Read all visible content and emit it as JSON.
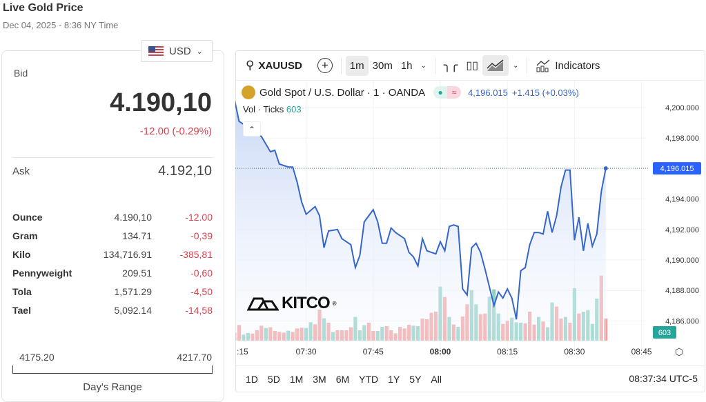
{
  "header": {
    "title": "Live Gold Price",
    "subtitle": "Dec 04, 2025 - 8:36 NY Time"
  },
  "currency": {
    "selected": "USD",
    "flag_icon": "us-flag-icon"
  },
  "quote": {
    "bid_label": "Bid",
    "bid": "4.190,10",
    "change": "-12.00 (-0.29%)",
    "ask_label": "Ask",
    "ask": "4.192,10"
  },
  "units": [
    {
      "name": "Ounce",
      "value": "4.190,10",
      "change": "-12.00"
    },
    {
      "name": "Gram",
      "value": "134.71",
      "change": "-0,39"
    },
    {
      "name": "Kilo",
      "value": "134,716.91",
      "change": "-385,81"
    },
    {
      "name": "Pennyweight",
      "value": "209.51",
      "change": "-0,60"
    },
    {
      "name": "Tola",
      "value": "1,571.29",
      "change": "-4,50"
    },
    {
      "name": "Tael",
      "value": "5,092.14",
      "change": "-14,58"
    }
  ],
  "day_range": {
    "low": "4175.20",
    "high": "4217.70",
    "label": "Day's Range",
    "current_fraction": 0.35
  },
  "toolbar": {
    "symbol": "XAUUSD",
    "intervals": [
      "1m",
      "30m",
      "1h"
    ],
    "selected_interval": "1m",
    "indicators": "Indicators"
  },
  "legend": {
    "title": "Gold Spot / U.S. Dollar · 1 · OANDA",
    "price": "4,196.015",
    "change": "+1.415 (+0.03%)",
    "vol_label": "Vol · Ticks",
    "vol_value": "603"
  },
  "logo": "KITCO",
  "ranges": [
    "1D",
    "5D",
    "1M",
    "3M",
    "6M",
    "YTD",
    "1Y",
    "5Y",
    "All"
  ],
  "clock": "08:37:34 UTC-5",
  "colors": {
    "line": "#3565c9",
    "up": "#26a69a",
    "down": "#ef5350",
    "price_tag": "#2962ff",
    "change": "#d9434f"
  },
  "chart_data": {
    "type": "area",
    "y_ticks": [
      "4,200.000",
      "4,198.000",
      "4,196.015",
      "4,194.000",
      "4,192.000",
      "4,190.000",
      "4,188.000",
      "4,186.000"
    ],
    "y_tick_values": [
      4200,
      4198,
      4194,
      4192,
      4190,
      4188,
      4186
    ],
    "x_ticks": [
      ":15",
      "07:30",
      "07:45",
      "08:00",
      "08:15",
      "08:30",
      "08:45"
    ],
    "last_price_label": "4,196.015",
    "last_volume_label": "603",
    "grid": true,
    "price": [
      [
        "07:14",
        4200.5
      ],
      [
        "07:15",
        4199.1
      ],
      [
        "07:16",
        4198.9
      ],
      [
        "07:17",
        4198.7
      ],
      [
        "07:18",
        4198.5
      ],
      [
        "07:19",
        4198.3
      ],
      [
        "07:20",
        4198.1
      ],
      [
        "07:21",
        4197.6
      ],
      [
        "07:22",
        4197.1
      ],
      [
        "07:23",
        4197.2
      ],
      [
        "07:24",
        4196.3
      ],
      [
        "07:25",
        4196.2
      ],
      [
        "07:26",
        4196.1
      ],
      [
        "07:27",
        4196.1
      ],
      [
        "07:28",
        4195.1
      ],
      [
        "07:29",
        4193.8
      ],
      [
        "07:30",
        4193.0
      ],
      [
        "07:32",
        4193.5
      ],
      [
        "07:33",
        4192.9
      ],
      [
        "07:34",
        4190.8
      ],
      [
        "07:35",
        4191.9
      ],
      [
        "07:37",
        4192.0
      ],
      [
        "07:38",
        4191.4
      ],
      [
        "07:40",
        4191.0
      ],
      [
        "07:41",
        4189.5
      ],
      [
        "07:42",
        4190.3
      ],
      [
        "07:43",
        4192.5
      ],
      [
        "07:45",
        4193.3
      ],
      [
        "07:46",
        4192.5
      ],
      [
        "07:47",
        4191.1
      ],
      [
        "07:48",
        4191.1
      ],
      [
        "07:49",
        4192.1
      ],
      [
        "07:50",
        4191.8
      ],
      [
        "07:52",
        4191.4
      ],
      [
        "07:53",
        4190.5
      ],
      [
        "07:54",
        4190.2
      ],
      [
        "07:55",
        4189.6
      ],
      [
        "07:56",
        4191.4
      ],
      [
        "07:57",
        4190.6
      ],
      [
        "07:59",
        4190.4
      ],
      [
        "08:00",
        4191.2
      ],
      [
        "08:01",
        4190.6
      ],
      [
        "08:02",
        4192.2
      ],
      [
        "08:03",
        4192.3
      ],
      [
        "08:04",
        4192.2
      ],
      [
        "08:05",
        4188.1
      ],
      [
        "08:06",
        4187.7
      ],
      [
        "08:07",
        4190.8
      ],
      [
        "08:08",
        4191.1
      ],
      [
        "08:09",
        4190.5
      ],
      [
        "08:10",
        4189.4
      ],
      [
        "08:12",
        4187.0
      ],
      [
        "08:13",
        4187.9
      ],
      [
        "08:14",
        4187.5
      ],
      [
        "08:15",
        4188.1
      ],
      [
        "08:16",
        4187.5
      ],
      [
        "08:17",
        4186.1
      ],
      [
        "08:18",
        4189.3
      ],
      [
        "08:19",
        4189.5
      ],
      [
        "08:20",
        4191.0
      ],
      [
        "08:21",
        4191.8
      ],
      [
        "08:22",
        4191.8
      ],
      [
        "08:23",
        4191.7
      ],
      [
        "08:24",
        4193.2
      ],
      [
        "08:25",
        4191.8
      ],
      [
        "08:26",
        4192.9
      ],
      [
        "08:27",
        4194.8
      ],
      [
        "08:28",
        4195.9
      ],
      [
        "08:29",
        4195.9
      ],
      [
        "08:30",
        4191.3
      ],
      [
        "08:31",
        4192.8
      ],
      [
        "08:32",
        4190.6
      ],
      [
        "08:33",
        4192.4
      ],
      [
        "08:34",
        4190.9
      ],
      [
        "08:35",
        4191.7
      ],
      [
        "08:36",
        4194.5
      ],
      [
        "08:37",
        4196.015
      ]
    ],
    "volume_start": "07:14",
    "volume": [
      219,
      426,
      163,
      207,
      194,
      288,
      408,
      345,
      364,
      263,
      238,
      219,
      270,
      238,
      332,
      351,
      345,
      502,
      445,
      846,
      608,
      489,
      238,
      282,
      282,
      282,
      364,
      646,
      282,
      420,
      489,
      263,
      263,
      376,
      395,
      282,
      201,
      376,
      332,
      433,
      408,
      395,
      602,
      583,
      759,
      790,
      1473,
      1191,
      646,
      439,
      376,
      658,
      991,
      1379,
      991,
      721,
      740,
      1198,
      1398,
      740,
      458,
      539,
      627,
      502,
      489,
      470,
      790,
      439,
      646,
      520,
      364,
      1041,
      928,
      602,
      646,
      489,
      1430,
      740,
      790,
      834,
      458,
      1147,
      1774,
      603
    ],
    "volume_dir": "rrggrrrgrrrrgrrrggrrgrgrrrrgggrrggrrrrrrggrrrrgrgrgrrggrrgggrrgggrrrgrggrrgrgrgggg"
  }
}
